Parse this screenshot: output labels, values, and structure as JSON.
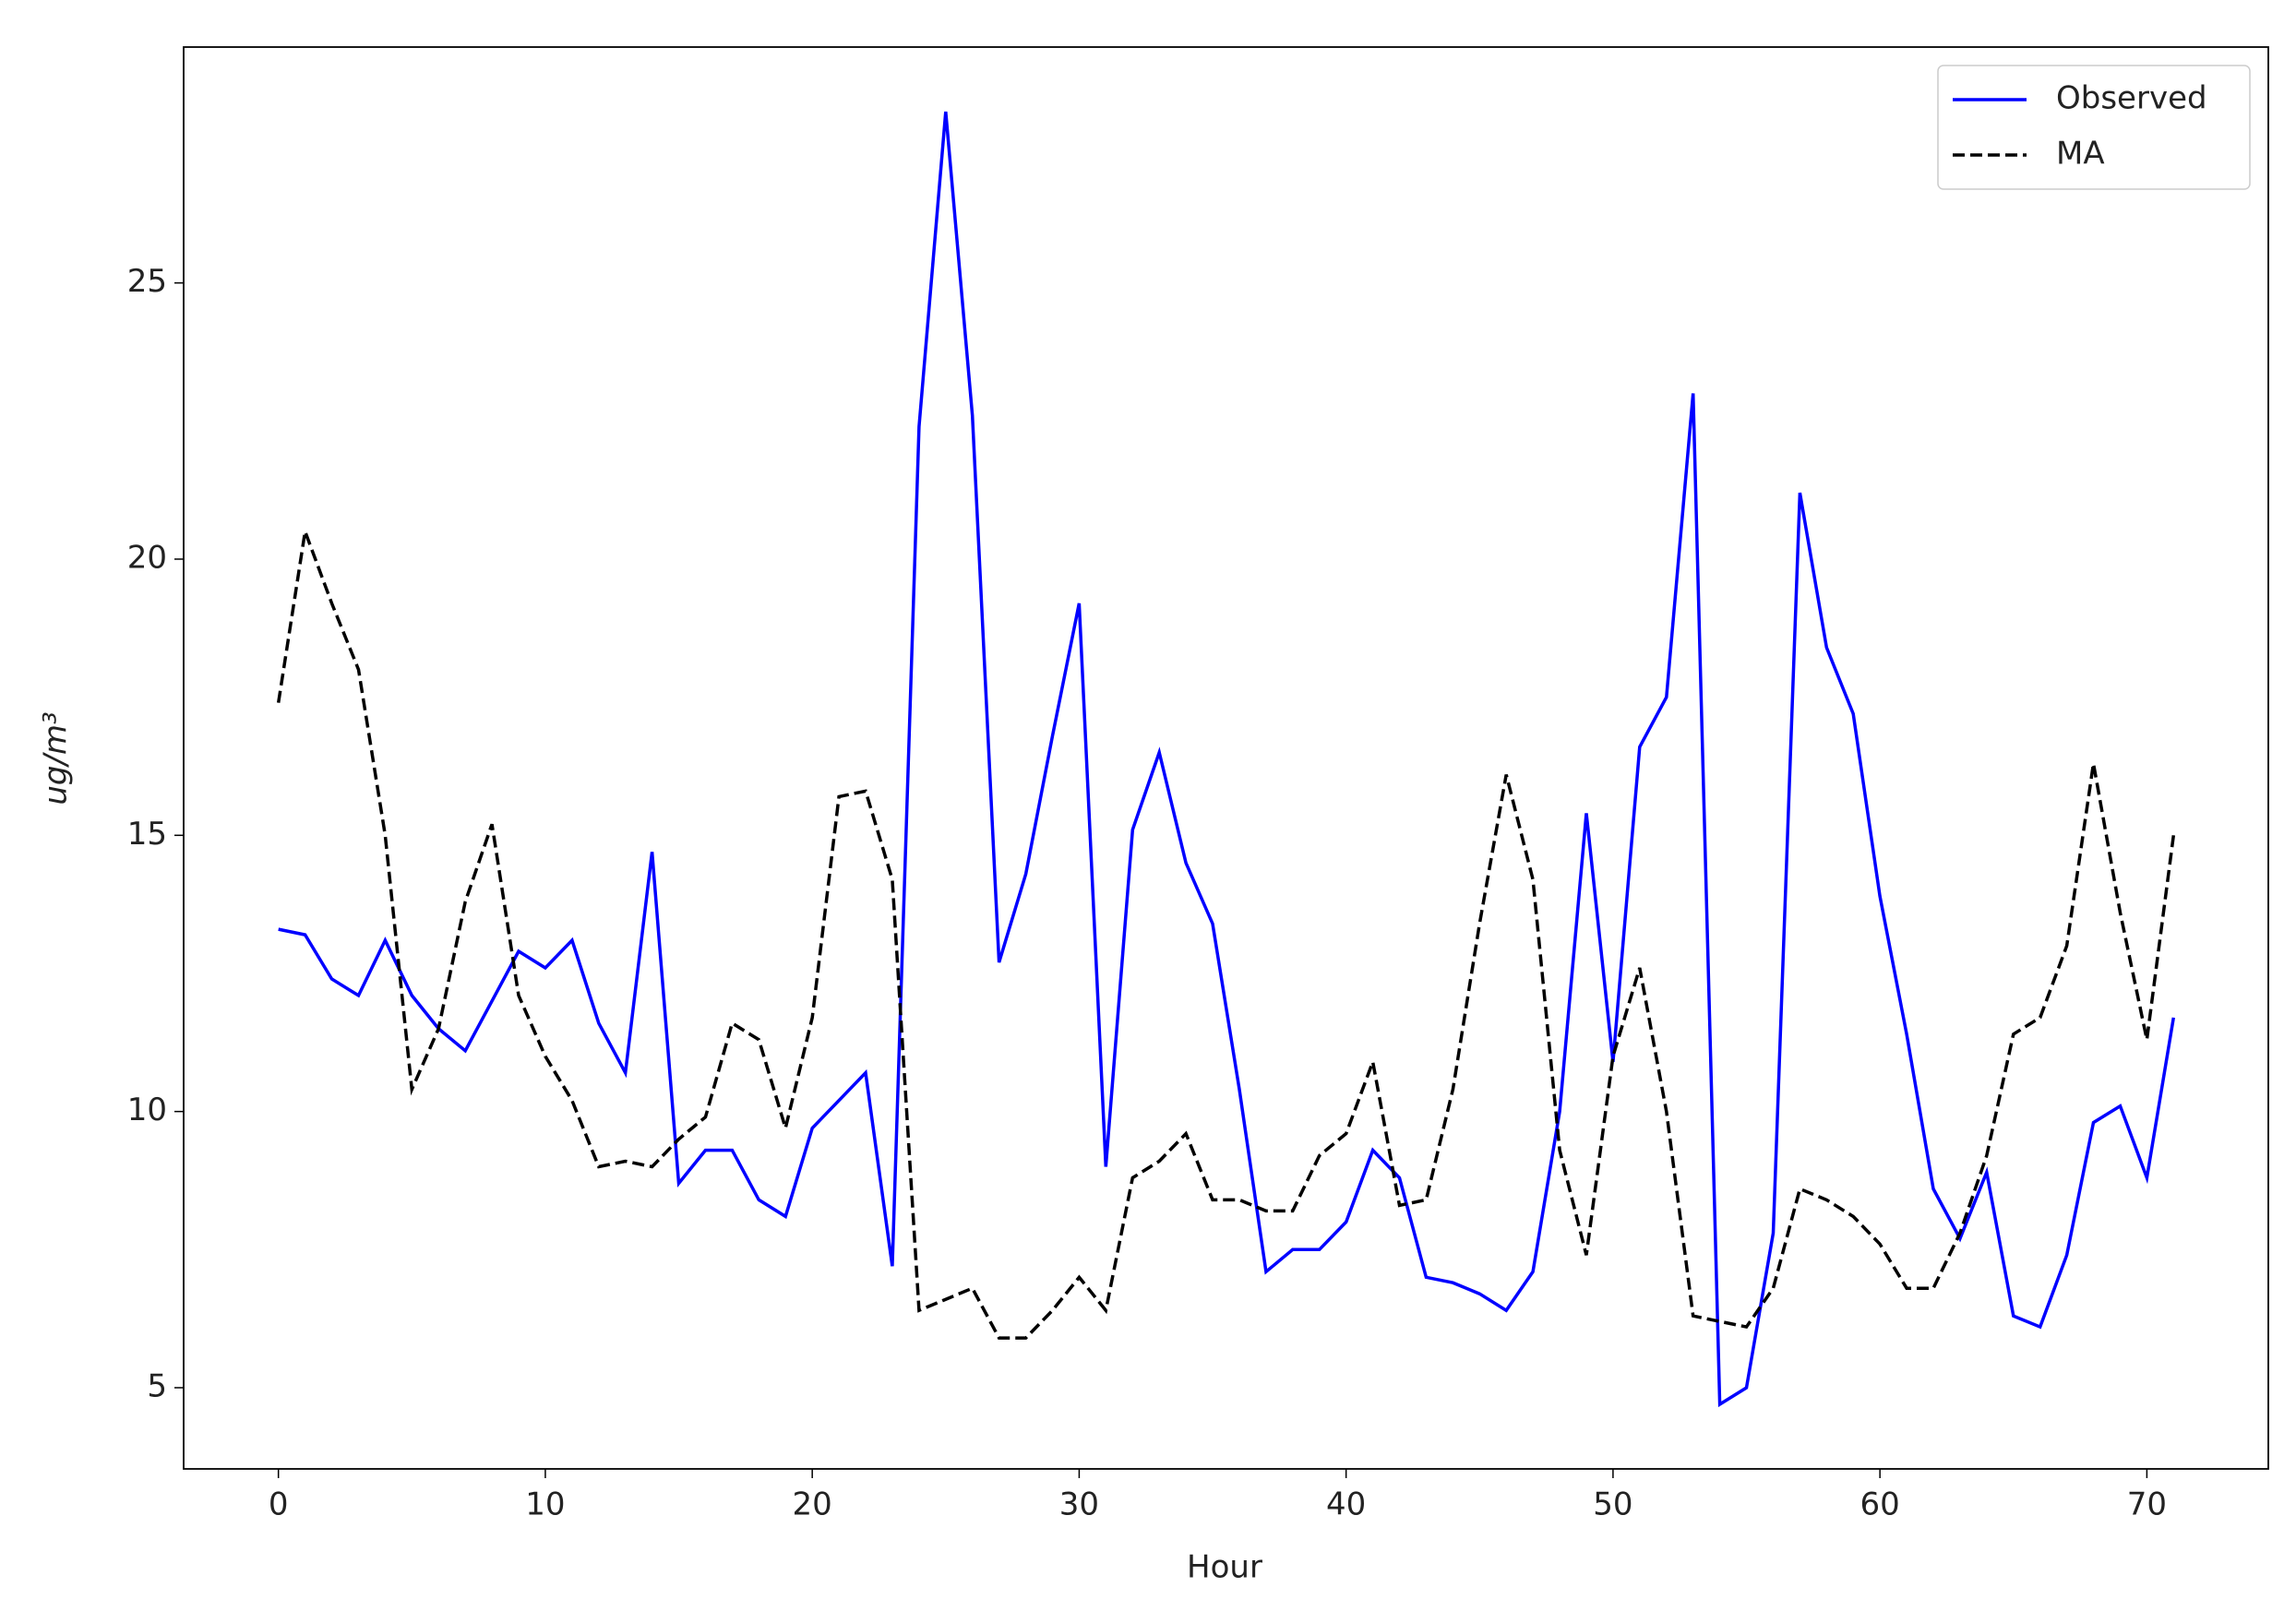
{
  "chart_data": {
    "type": "line",
    "x_label": "Hour",
    "y_label": "ug/m³",
    "x": [
      0,
      1,
      2,
      3,
      4,
      5,
      6,
      7,
      8,
      9,
      10,
      11,
      12,
      13,
      14,
      15,
      16,
      17,
      18,
      19,
      20,
      21,
      22,
      23,
      24,
      25,
      26,
      27,
      28,
      29,
      30,
      31,
      32,
      33,
      34,
      35,
      36,
      37,
      38,
      39,
      40,
      41,
      42,
      43,
      44,
      45,
      46,
      47,
      48,
      49,
      50,
      51,
      52,
      53,
      54,
      55,
      56,
      57,
      58,
      59,
      60,
      61,
      62,
      63,
      64,
      65,
      66,
      67,
      68,
      69,
      70,
      71
    ],
    "series": [
      {
        "name": "Observed",
        "color": "#0000ff",
        "dash": "solid",
        "values": [
          13.3,
          13.2,
          12.4,
          12.1,
          13.1,
          12.1,
          11.5,
          11.1,
          12.0,
          12.9,
          12.6,
          13.1,
          11.6,
          10.7,
          14.7,
          8.7,
          9.3,
          9.3,
          8.4,
          8.1,
          9.7,
          10.2,
          10.7,
          7.2,
          22.4,
          28.1,
          22.6,
          12.7,
          14.3,
          16.8,
          19.2,
          9.0,
          15.1,
          16.5,
          14.5,
          13.4,
          10.4,
          7.1,
          7.5,
          7.5,
          8.0,
          9.3,
          8.8,
          7.0,
          6.9,
          6.7,
          6.4,
          7.1,
          10.0,
          15.4,
          10.9,
          16.6,
          17.5,
          23.0,
          4.7,
          5.0,
          7.8,
          21.2,
          18.4,
          17.2,
          13.9,
          11.4,
          8.6,
          7.7,
          8.9,
          6.3,
          6.1,
          7.4,
          9.8,
          10.1,
          8.8,
          11.7
        ]
      },
      {
        "name": "MA",
        "color": "#000000",
        "dash": "dashed",
        "values": [
          17.4,
          20.5,
          19.2,
          18.0,
          15.0,
          10.4,
          11.5,
          13.8,
          15.2,
          12.1,
          11.0,
          10.2,
          9.0,
          9.1,
          9.0,
          9.5,
          9.9,
          11.6,
          11.3,
          9.7,
          11.7,
          15.7,
          15.8,
          14.2,
          6.4,
          6.6,
          6.8,
          5.9,
          5.9,
          6.4,
          7.0,
          6.4,
          8.8,
          9.1,
          9.6,
          8.4,
          8.4,
          8.2,
          8.2,
          9.2,
          9.6,
          10.9,
          8.3,
          8.4,
          10.4,
          13.4,
          16.1,
          14.2,
          9.3,
          7.4,
          11.0,
          12.6,
          10.0,
          6.3,
          6.2,
          6.1,
          6.8,
          8.6,
          8.4,
          8.1,
          7.6,
          6.8,
          6.8,
          7.8,
          9.2,
          11.4,
          11.7,
          13.0,
          16.3,
          13.6,
          11.3,
          15.0
        ]
      }
    ],
    "xlim": [
      -3.55,
      74.55
    ],
    "xticks": [
      0,
      10,
      20,
      30,
      40,
      50,
      60,
      70
    ],
    "ylim": [
      3.53,
      29.27
    ],
    "yticks": [
      5,
      10,
      15,
      20,
      25
    ],
    "legend": "upper right"
  }
}
